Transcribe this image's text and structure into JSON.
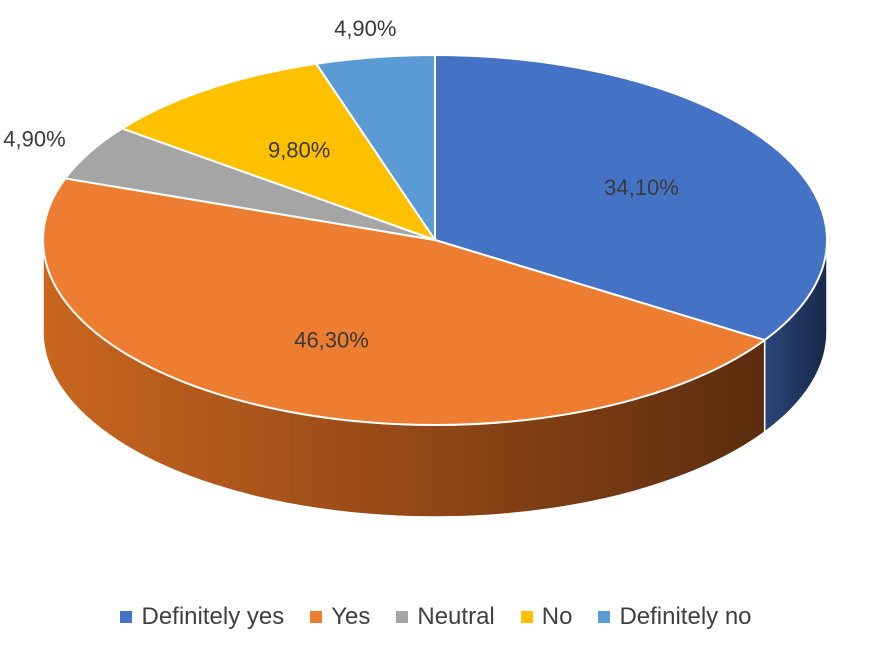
{
  "chart_data": {
    "type": "pie",
    "style": "3d",
    "title": "",
    "categories": [
      "Definitely yes",
      "Yes",
      "Neutral",
      "No",
      "Definitely no"
    ],
    "values": [
      34.1,
      46.3,
      4.9,
      9.8,
      4.9
    ],
    "labels": [
      "34,10%",
      "46,30%",
      "4,90%",
      "9,80%",
      "4,90%"
    ],
    "colors": [
      "#4472C4",
      "#ED7D31",
      "#A5A5A5",
      "#FFC000",
      "#5B9BD5"
    ],
    "start_angle_deg": 0,
    "direction": "clockwise",
    "legend_position": "bottom"
  }
}
